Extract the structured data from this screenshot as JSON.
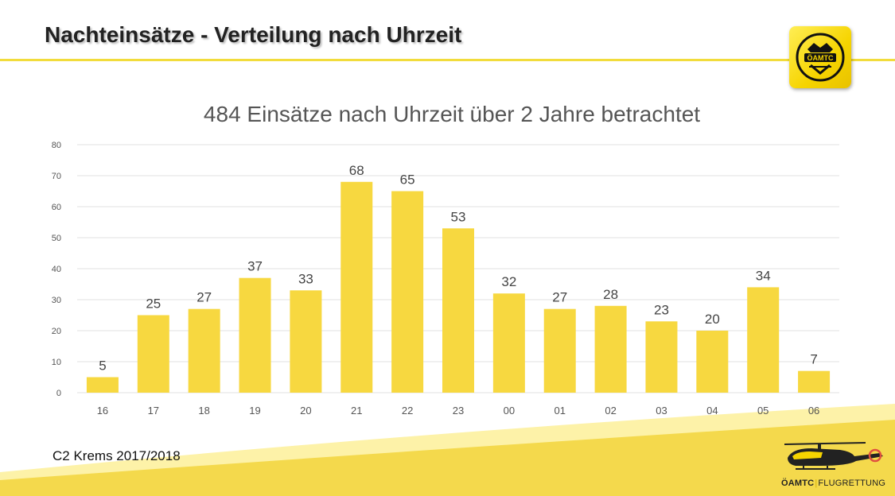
{
  "slide": {
    "title": "Nachteinsätze - Verteilung nach Uhrzeit",
    "footer": "C2 Krems 2017/2018",
    "logo_text": "ÖAMTC",
    "brand_primary": "ÖAMTC",
    "brand_secondary": "FLUGRETTUNG"
  },
  "colors": {
    "accent": "#f2dc3c",
    "bar": "#f7d840",
    "logo_yellow": "#f6d400"
  },
  "chart_data": {
    "type": "bar",
    "title": "484 Einsätze nach Uhrzeit über 2 Jahre betrachtet",
    "categories": [
      "16",
      "17",
      "18",
      "19",
      "20",
      "21",
      "22",
      "23",
      "00",
      "01",
      "02",
      "03",
      "04",
      "05",
      "06"
    ],
    "values": [
      5,
      25,
      27,
      37,
      33,
      68,
      65,
      53,
      32,
      27,
      28,
      23,
      20,
      34,
      7
    ],
    "yticks": [
      0,
      10,
      20,
      30,
      40,
      50,
      60,
      70,
      80
    ],
    "ylim": [
      0,
      80
    ],
    "grid": true,
    "data_labels": true,
    "legend": "none"
  }
}
